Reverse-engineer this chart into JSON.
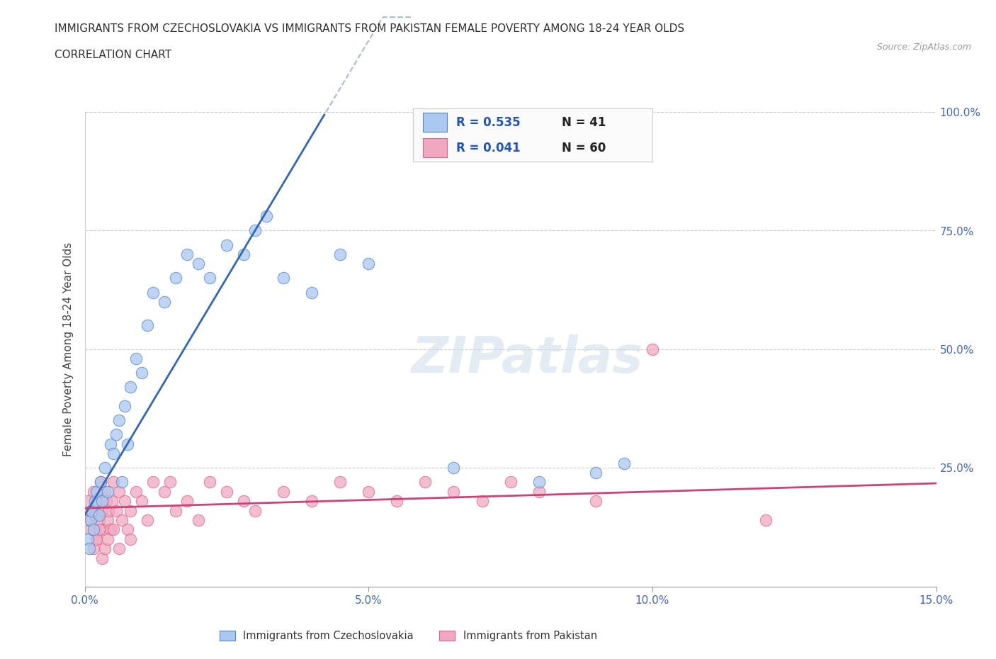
{
  "title_line1": "IMMIGRANTS FROM CZECHOSLOVAKIA VS IMMIGRANTS FROM PAKISTAN FEMALE POVERTY AMONG 18-24 YEAR OLDS",
  "title_line2": "CORRELATION CHART",
  "source_text": "Source: ZipAtlas.com",
  "ylabel": "Female Poverty Among 18-24 Year Olds",
  "xlim": [
    0.0,
    15.0
  ],
  "ylim": [
    0.0,
    100.0
  ],
  "xtick_labels": [
    "0.0%",
    "5.0%",
    "10.0%",
    "15.0%"
  ],
  "xtick_values": [
    0.0,
    5.0,
    10.0,
    15.0
  ],
  "ytick_values": [
    25.0,
    50.0,
    75.0,
    100.0
  ],
  "ytick_labels": [
    "25.0%",
    "50.0%",
    "75.0%",
    "100.0%"
  ],
  "legend_entry1": "Immigrants from Czechoslovakia",
  "legend_entry2": "Immigrants from Pakistan",
  "R1": 0.535,
  "N1": 41,
  "R2": 0.041,
  "N2": 60,
  "color1": "#aac8f0",
  "color2": "#f0a8c0",
  "edge_color1": "#5588cc",
  "edge_color2": "#dd6688",
  "line_color1": "#3366bb",
  "line_color2": "#cc4477",
  "watermark": "ZIPatlas",
  "background_color": "#ffffff",
  "czechoslovakia_x": [
    0.05,
    0.08,
    0.1,
    0.12,
    0.15,
    0.18,
    0.2,
    0.25,
    0.28,
    0.3,
    0.35,
    0.4,
    0.45,
    0.5,
    0.55,
    0.6,
    0.65,
    0.7,
    0.75,
    0.8,
    0.9,
    1.0,
    1.1,
    1.2,
    1.4,
    1.6,
    1.8,
    2.0,
    2.2,
    2.5,
    2.8,
    3.0,
    3.2,
    3.5,
    4.0,
    4.5,
    5.0,
    6.5,
    8.0,
    9.0,
    9.5
  ],
  "czechoslovakia_y": [
    10,
    8,
    14,
    16,
    12,
    18,
    20,
    15,
    22,
    18,
    25,
    20,
    30,
    28,
    32,
    35,
    22,
    38,
    30,
    42,
    48,
    45,
    55,
    62,
    60,
    65,
    70,
    68,
    65,
    72,
    70,
    75,
    78,
    65,
    62,
    70,
    68,
    25,
    22,
    24,
    26
  ],
  "pakistan_x": [
    0.05,
    0.08,
    0.1,
    0.12,
    0.15,
    0.18,
    0.2,
    0.22,
    0.25,
    0.28,
    0.3,
    0.32,
    0.35,
    0.38,
    0.4,
    0.42,
    0.45,
    0.48,
    0.5,
    0.55,
    0.6,
    0.65,
    0.7,
    0.75,
    0.8,
    0.9,
    1.0,
    1.1,
    1.2,
    1.4,
    1.6,
    1.8,
    2.0,
    2.2,
    2.5,
    2.8,
    3.0,
    3.5,
    4.0,
    4.5,
    5.0,
    5.5,
    6.0,
    6.5,
    7.0,
    7.5,
    8.0,
    9.0,
    10.0,
    12.0,
    0.15,
    0.2,
    0.25,
    0.3,
    0.35,
    0.4,
    0.5,
    0.6,
    0.8,
    1.5
  ],
  "pakistan_y": [
    18,
    14,
    12,
    16,
    20,
    15,
    10,
    18,
    14,
    22,
    16,
    12,
    20,
    18,
    14,
    16,
    12,
    18,
    22,
    16,
    20,
    14,
    18,
    12,
    16,
    20,
    18,
    14,
    22,
    20,
    16,
    18,
    14,
    22,
    20,
    18,
    16,
    20,
    18,
    22,
    20,
    18,
    22,
    20,
    18,
    22,
    20,
    18,
    50,
    14,
    8,
    10,
    12,
    6,
    8,
    10,
    12,
    8,
    10,
    22
  ],
  "cz_line_x0": 0.0,
  "cz_line_y0": 15.0,
  "cz_line_slope": 20.0,
  "pk_line_x0": 0.0,
  "pk_line_y0": 16.5,
  "pk_line_slope": 0.35
}
